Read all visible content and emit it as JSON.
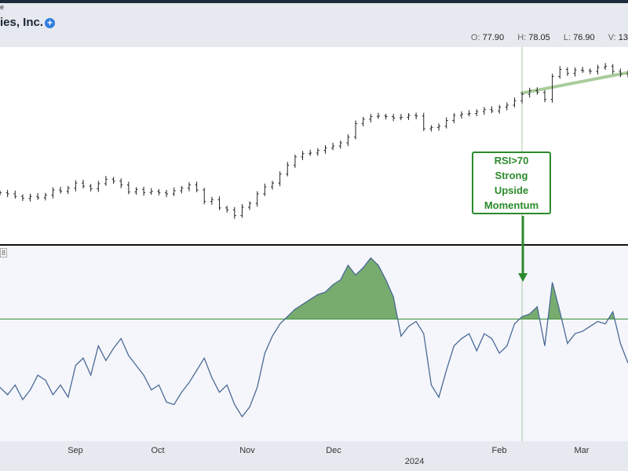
{
  "header": {
    "tiny_text": "e",
    "company": "ies, Inc.",
    "plus_icon": "plus-circle-icon",
    "ohlc": [
      {
        "key": "O:",
        "value": "77.90"
      },
      {
        "key": "H:",
        "value": "78.05"
      },
      {
        "key": "L:",
        "value": "76.90"
      },
      {
        "key": "V:",
        "value": "13"
      }
    ]
  },
  "chart_data": {
    "type": "line",
    "x_axis": {
      "month_labels": [
        "Sep",
        "Oct",
        "Nov",
        "Dec",
        "Feb",
        "Mar"
      ],
      "year_label": "2024"
    },
    "price_series": {
      "style": "ohlc-bars",
      "values": [
        68.2,
        68.0,
        67.6,
        67.3,
        67.6,
        67.4,
        67.8,
        68.6,
        68.4,
        68.9,
        69.7,
        69.2,
        68.8,
        69.6,
        70.3,
        70.0,
        69.4,
        68.3,
        68.7,
        68.2,
        68.4,
        68.2,
        68.0,
        68.5,
        68.9,
        69.4,
        68.6,
        66.8,
        67.1,
        65.8,
        65.5,
        64.6,
        65.9,
        66.5,
        68.0,
        69.1,
        69.7,
        71.1,
        72.5,
        73.8,
        74.3,
        74.4,
        74.8,
        75.2,
        75.5,
        76.0,
        76.9,
        79.0,
        79.7,
        80.1,
        80.2,
        80.1,
        79.9,
        80.0,
        80.3,
        80.2,
        78.2,
        78.4,
        78.6,
        79.5,
        80.3,
        80.5,
        80.6,
        80.9,
        81.2,
        81.0,
        81.6,
        81.9,
        82.6,
        83.6,
        84.2,
        83.9,
        82.8,
        86.4,
        87.5,
        86.9,
        87.4,
        87.3,
        87.2,
        87.8,
        88.0,
        87.2,
        86.8,
        86.6
      ],
      "trendline": {
        "from_index": 69,
        "to_index": 83,
        "from_value": 83.8,
        "to_value": 87.0,
        "color": "#a9cc9b"
      }
    },
    "rsi_series": {
      "name": "RSI",
      "threshold": 70,
      "ylim": [
        20,
        100
      ],
      "fill_color": "#78ac6e",
      "line_color": "#4a6a95",
      "threshold_color": "#2c8a2c",
      "values": [
        42,
        39,
        43,
        37,
        41,
        47,
        45,
        39,
        43,
        38,
        51,
        54,
        47,
        59,
        53,
        58,
        62,
        55,
        51,
        47,
        41,
        43,
        36,
        35,
        40,
        44,
        49,
        54,
        46,
        40,
        43,
        35,
        30,
        34,
        42,
        56,
        63,
        68,
        71,
        74,
        76,
        78,
        80,
        81,
        84,
        86,
        92,
        88,
        91,
        95,
        92,
        86,
        79,
        63,
        67,
        69,
        64,
        43,
        38,
        49,
        59,
        62,
        64,
        57,
        64,
        62,
        56,
        59,
        68,
        71,
        72,
        75,
        59,
        85,
        73,
        60,
        64,
        65,
        67,
        69,
        68,
        73,
        60,
        52
      ]
    },
    "annotation": {
      "lines": [
        "RSI>70",
        "Strong",
        "Upside",
        "Momentum"
      ],
      "target_index": 69,
      "color": "#2c8a2c"
    }
  }
}
